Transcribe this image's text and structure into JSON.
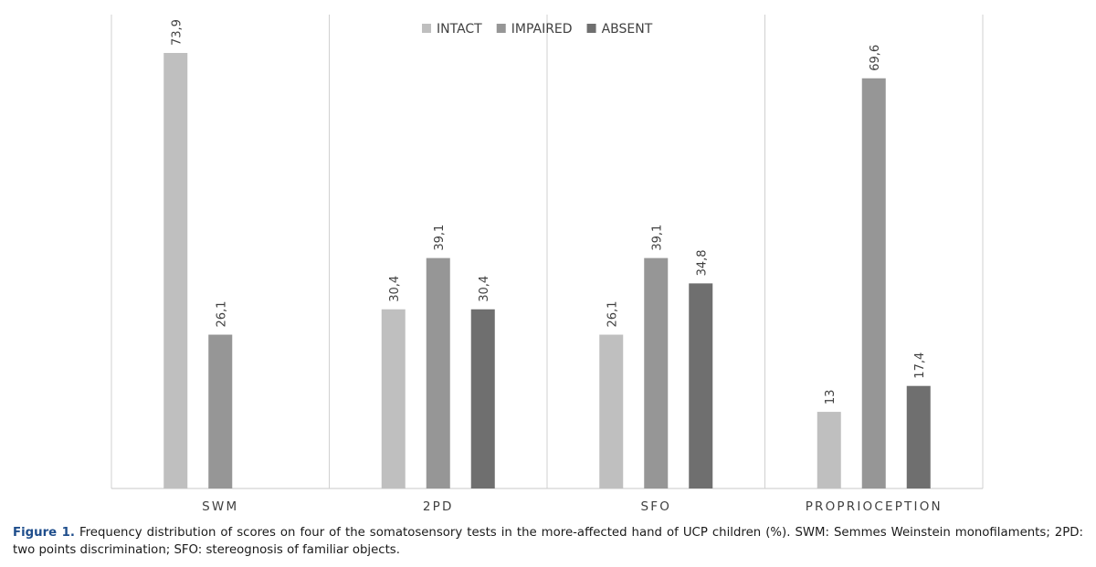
{
  "chart_data": {
    "type": "bar",
    "categories": [
      "SWM",
      "2PD",
      "SFO",
      "PROPRIOCEPTION"
    ],
    "series": [
      {
        "name": "INTACT",
        "color": "#bfbfbf",
        "values": [
          73.9,
          30.4,
          26.1,
          13
        ],
        "labels": [
          "73,9",
          "30,4",
          "26,1",
          "13"
        ]
      },
      {
        "name": "IMPAIRED",
        "color": "#969696",
        "values": [
          26.1,
          39.1,
          39.1,
          69.6
        ],
        "labels": [
          "26,1",
          "39,1",
          "39,1",
          "69,6"
        ]
      },
      {
        "name": "ABSENT",
        "color": "#6f6f6f",
        "values": [
          null,
          30.4,
          34.8,
          17.4
        ],
        "labels": [
          "",
          "30,4",
          "34,8",
          "17,4"
        ]
      }
    ],
    "ylim": [
      0,
      80
    ],
    "legend_position": "top-center",
    "grid": false
  },
  "caption": {
    "label": "Figure 1.",
    "text": "Frequency distribution of scores on four of the somatosensory tests in the more-affected hand of UCP children (%). SWM: Semmes Weinstein monofilaments; 2PD: two points discrimination; SFO: stereognosis of familiar objects."
  }
}
